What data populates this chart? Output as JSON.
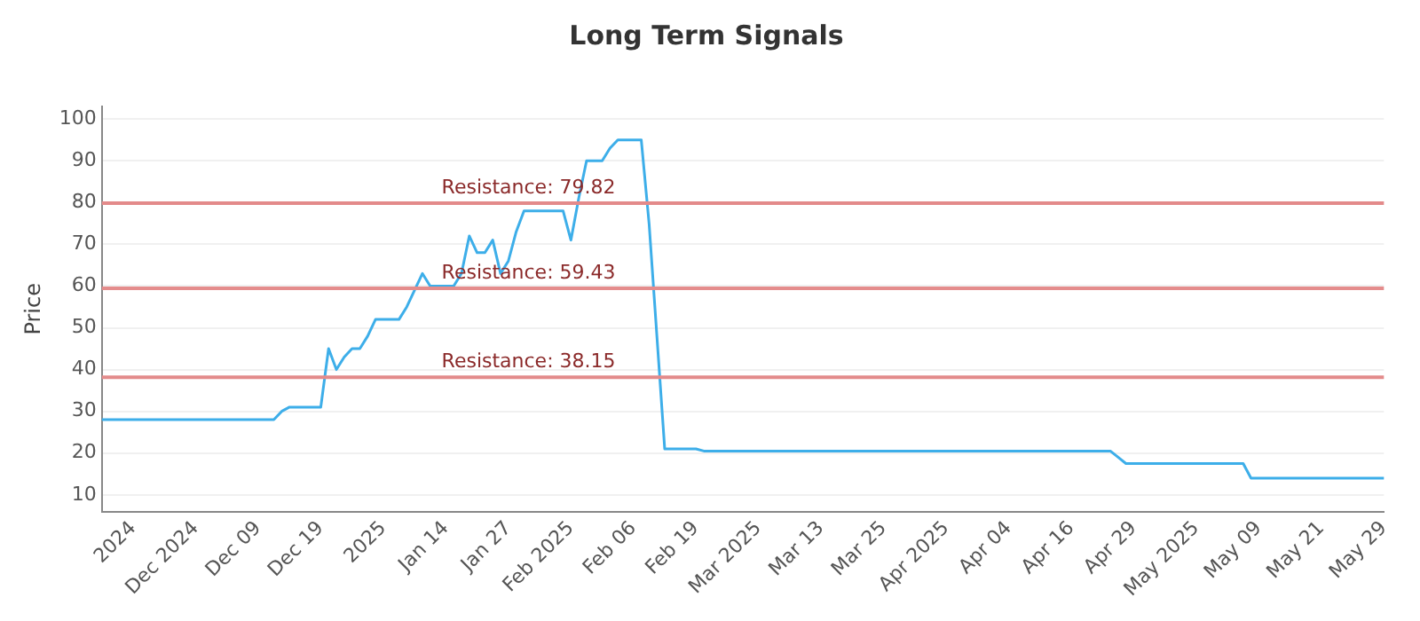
{
  "chart_data": {
    "type": "line",
    "title": "Long Term Signals",
    "ylabel": "Price",
    "categories": [
      null,
      null,
      null,
      null,
      "2024",
      null,
      null,
      null,
      null,
      null,
      null,
      null,
      "Dec 2024",
      null,
      null,
      null,
      null,
      null,
      null,
      null,
      "Dec 09",
      null,
      null,
      null,
      null,
      null,
      null,
      null,
      "Dec 19",
      null,
      null,
      null,
      null,
      null,
      null,
      null,
      "2025",
      null,
      null,
      null,
      null,
      null,
      null,
      null,
      "Jan 14",
      null,
      null,
      null,
      null,
      null,
      null,
      null,
      "Jan 27",
      null,
      null,
      null,
      null,
      null,
      null,
      null,
      "Feb 2025",
      null,
      null,
      null,
      null,
      null,
      null,
      null,
      "Feb 06",
      null,
      null,
      null,
      null,
      null,
      null,
      null,
      "Feb 19",
      null,
      null,
      null,
      null,
      null,
      null,
      null,
      "Mar 2025",
      null,
      null,
      null,
      null,
      null,
      null,
      null,
      "Mar 13",
      null,
      null,
      null,
      null,
      null,
      null,
      null,
      "Mar 25",
      null,
      null,
      null,
      null,
      null,
      null,
      null,
      "Apr 2025",
      null,
      null,
      null,
      null,
      null,
      null,
      null,
      "Apr 04",
      null,
      null,
      null,
      null,
      null,
      null,
      null,
      "Apr 16",
      null,
      null,
      null,
      null,
      null,
      null,
      null,
      "Apr 29",
      null,
      null,
      null,
      null,
      null,
      null,
      null,
      "May 2025",
      null,
      null,
      null,
      null,
      null,
      null,
      null,
      "May 09",
      null,
      null,
      null,
      null,
      null,
      null,
      null,
      "May 21",
      null,
      null,
      null,
      null,
      null,
      null,
      null,
      "May 29"
    ],
    "series": [
      {
        "color": "#3daee9",
        "values": [
          28,
          28,
          28,
          28,
          28,
          28,
          28,
          28,
          28,
          28,
          28,
          28,
          28,
          28,
          28,
          28,
          28,
          28,
          28,
          28,
          28,
          28,
          28,
          30,
          31,
          31,
          31,
          31,
          31,
          45,
          40,
          43,
          45,
          45,
          48,
          52,
          52,
          52,
          52,
          55,
          59,
          63,
          60,
          60,
          60,
          60,
          63,
          72,
          68,
          68,
          71,
          63,
          66,
          73,
          78,
          78,
          78,
          78,
          78,
          78,
          71,
          81,
          90,
          90,
          90,
          93,
          95,
          95,
          95,
          95,
          75,
          48,
          21,
          21,
          21,
          21,
          21,
          20.5,
          20.5,
          20.5,
          20.5,
          20.5,
          20.5,
          20.5,
          20.5,
          20.5,
          20.5,
          20.5,
          20.5,
          20.5,
          20.5,
          20.5,
          20.5,
          20.5,
          20.5,
          20.5,
          20.5,
          20.5,
          20.5,
          20.5,
          20.5,
          20.5,
          20.5,
          20.5,
          20.5,
          20.5,
          20.5,
          20.5,
          20.5,
          20.5,
          20.5,
          20.5,
          20.5,
          20.5,
          20.5,
          20.5,
          20.5,
          20.5,
          20.5,
          20.5,
          20.5,
          20.5,
          20.5,
          20.5,
          20.5,
          20.5,
          20.5,
          20.5,
          20.5,
          20.5,
          19,
          17.5,
          17.5,
          17.5,
          17.5,
          17.5,
          17.5,
          17.5,
          17.5,
          17.5,
          17.5,
          17.5,
          17.5,
          17.5,
          17.5,
          17.5,
          17.5,
          14,
          14,
          14,
          14,
          14,
          14,
          14,
          14,
          14,
          14,
          14,
          14,
          14,
          14,
          14,
          14,
          14,
          14
        ]
      }
    ],
    "ylim": [
      6,
      103
    ],
    "yticks": [
      10,
      20,
      30,
      40,
      50,
      60,
      70,
      80,
      90,
      100
    ],
    "ref_lines": [
      {
        "axis": "y",
        "value": 79.82,
        "label": "Resistance: 79.82",
        "color": "#e38a8a"
      },
      {
        "axis": "y",
        "value": 59.43,
        "label": "Resistance: 59.43",
        "color": "#e48c8c"
      },
      {
        "axis": "y",
        "value": 38.15,
        "label": "Resistance: 38.15",
        "color": "#e38b8b"
      }
    ],
    "grid": "y",
    "legend": false,
    "marker": "none",
    "line_style": "solid"
  }
}
